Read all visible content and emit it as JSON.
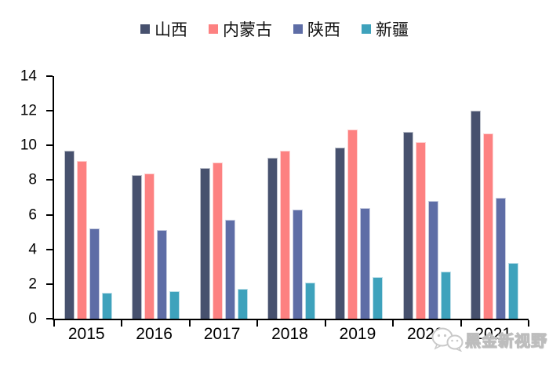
{
  "chart_data": {
    "type": "bar",
    "title": "",
    "xlabel": "",
    "ylabel": "",
    "categories": [
      "2015",
      "2016",
      "2017",
      "2018",
      "2019",
      "2020",
      "2021"
    ],
    "series": [
      {
        "id": "shanxi",
        "name": "山西",
        "color": "#47516E",
        "values": [
          9.7,
          8.3,
          8.7,
          9.3,
          9.9,
          10.8,
          12.0
        ]
      },
      {
        "id": "neimenggu",
        "name": "内蒙古",
        "color": "#FD8181",
        "values": [
          9.1,
          8.4,
          9.0,
          9.7,
          10.9,
          10.2,
          10.7
        ]
      },
      {
        "id": "shaanxi",
        "name": "陕西",
        "color": "#5E6DA6",
        "values": [
          5.2,
          5.1,
          5.7,
          6.3,
          6.4,
          6.8,
          7.0
        ]
      },
      {
        "id": "xinjiang",
        "name": "新疆",
        "color": "#3EA2BC",
        "values": [
          1.5,
          1.6,
          1.7,
          2.1,
          2.4,
          2.7,
          3.2
        ]
      }
    ],
    "ylim": [
      0,
      14
    ],
    "yticks": [
      0,
      2,
      4,
      6,
      8,
      10,
      12,
      14
    ],
    "grid": false,
    "legend_position": "top"
  },
  "watermark": {
    "text": "黑金新视野"
  }
}
